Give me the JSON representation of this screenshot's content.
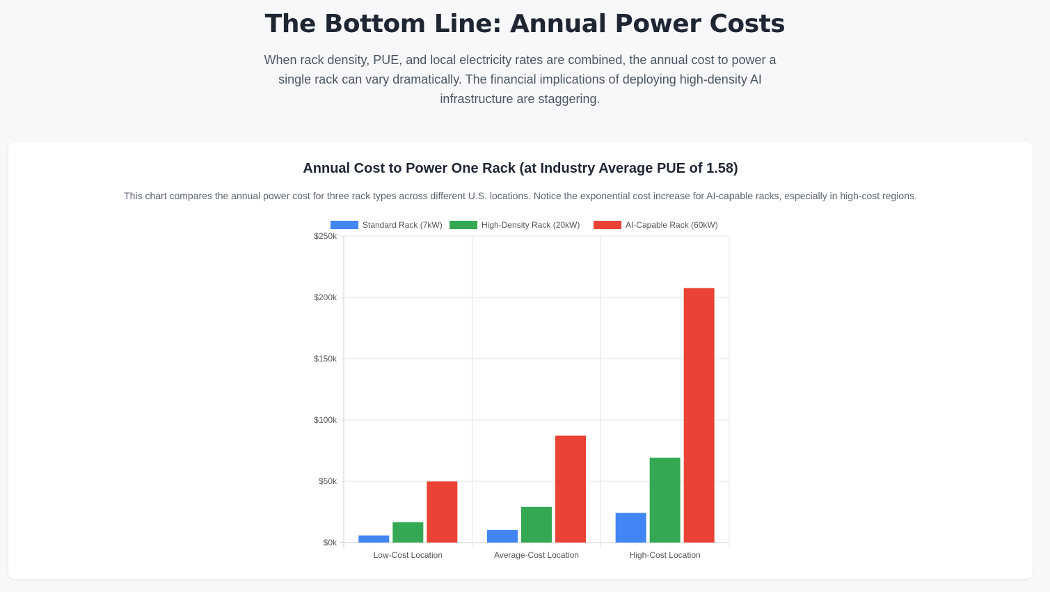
{
  "header": {
    "title": "The Bottom Line: Annual Power Costs",
    "intro": "When rack density, PUE, and local electricity rates are combined, the annual cost to power a single rack can vary dramatically. The financial implications of deploying high-density AI infrastructure are staggering."
  },
  "card": {
    "title": "Annual Cost to Power One Rack (at Industry Average PUE of 1.58)",
    "description": "This chart compares the annual power cost for three rack types across different U.S. locations. Notice the exponential cost increase for AI-capable racks, especially in high-cost regions."
  },
  "chart_data": {
    "type": "bar",
    "categories": [
      "Low-Cost Location",
      "Average-Cost Location",
      "High-Cost Location"
    ],
    "series": [
      {
        "name": "Standard Rack (7kW)",
        "color": "#4285F4",
        "values": [
          5800,
          10200,
          24200
        ]
      },
      {
        "name": "High-Density Rack (20kW)",
        "color": "#34A853",
        "values": [
          16600,
          29100,
          69200
        ]
      },
      {
        "name": "AI-Capable Rack (60kW)",
        "color": "#EA4335",
        "values": [
          49800,
          87200,
          207600
        ]
      }
    ],
    "yticks": [
      "$0k",
      "$50k",
      "$100k",
      "$150k",
      "$200k",
      "$250k"
    ],
    "ylim": [
      0,
      250000
    ],
    "grid": true,
    "legend": "top"
  }
}
